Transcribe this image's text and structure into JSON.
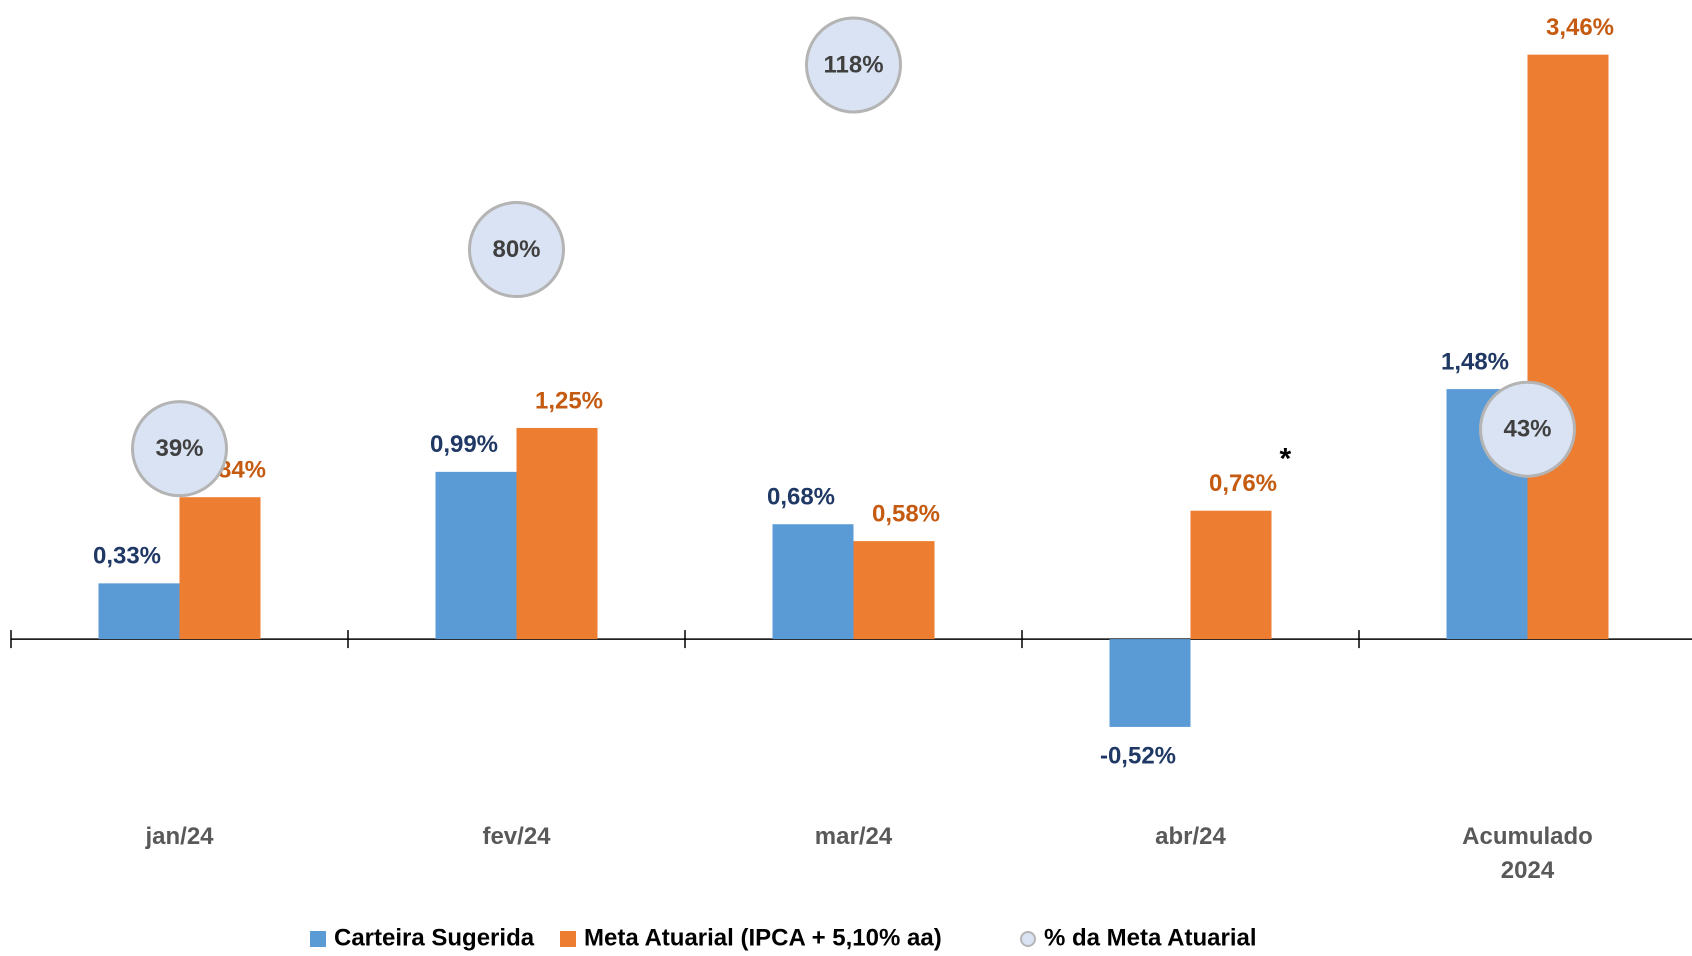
{
  "chart_data": {
    "type": "bar",
    "categories": [
      "jan/24",
      "fev/24",
      "mar/24",
      "abr/24",
      "Acumulado 2024"
    ],
    "series": [
      {
        "name": "Carteira Sugerida",
        "color": "#5b9bd5",
        "label_color": "#1f3864",
        "values": [
          0.33,
          0.99,
          0.68,
          -0.52,
          1.48
        ],
        "value_labels": [
          "0,33%",
          "0,99%",
          "0,68%",
          "-0,52%",
          "1,48%"
        ]
      },
      {
        "name": "Meta Atuarial (IPCA + 5,10% aa)",
        "color": "#ed7d31",
        "label_color": "#c55a11",
        "values": [
          0.84,
          1.25,
          0.58,
          0.76,
          3.46
        ],
        "value_labels": [
          "0,84%",
          "1,25%",
          "0,58%",
          "0,76%",
          "3,46%"
        ]
      },
      {
        "name": "% da Meta Atuarial",
        "color": "#dae3f3",
        "label_color": "#404040",
        "axis": "y2",
        "marker": "circle",
        "values": [
          39,
          80,
          118,
          null,
          43
        ],
        "value_labels": [
          "39%",
          "80%",
          "118%",
          null,
          "43%"
        ]
      }
    ],
    "annotations": [
      "*"
    ],
    "ylim": [
      -1.0,
      3.6
    ],
    "y2lim": [
      -35,
      125
    ],
    "legend": "bottom"
  }
}
